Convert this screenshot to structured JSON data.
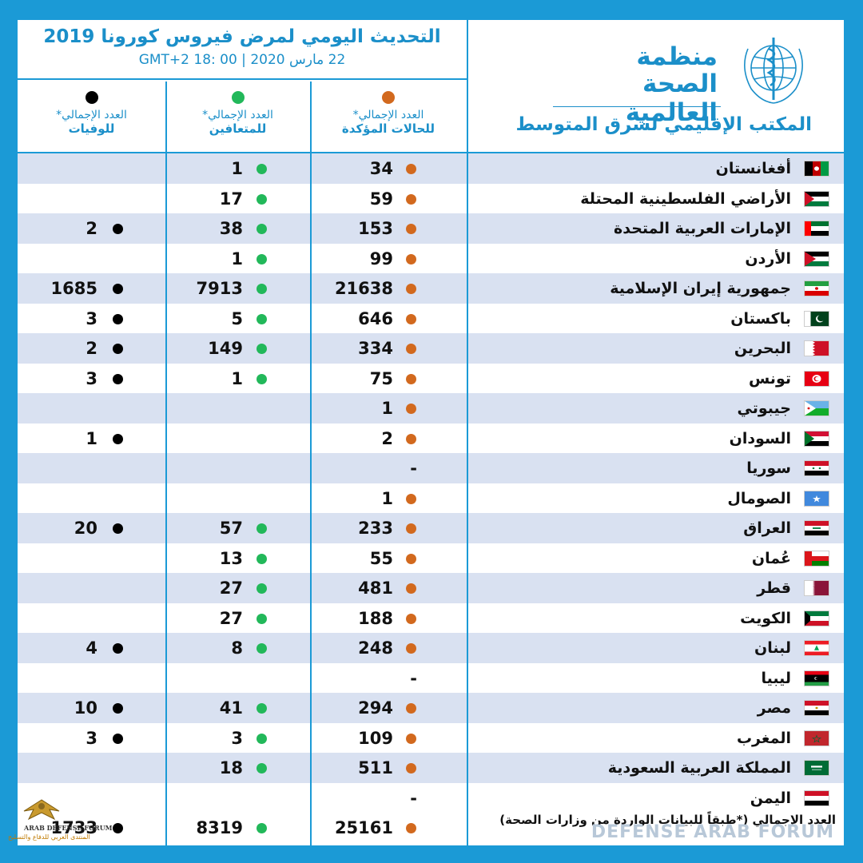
{
  "header": {
    "title": "التحديث اليومي لمرض فيروس كورونا 2019",
    "time": "22 مارس 2020 | GMT+2  18: 00"
  },
  "org": {
    "name_line1": "منظمة",
    "name_line2": "الصحة العالمية",
    "region": "المكتب الإقليمي لشرق المتوسط"
  },
  "columns": {
    "confirmed_l1": "العدد الإجمالي*",
    "confirmed_l2": "للحالات المؤكدة",
    "recovered_l1": "العدد الإجمالي*",
    "recovered_l2": "للمتعافين",
    "deaths_l1": "العدد الإجمالي*",
    "deaths_l2": "للوفيات"
  },
  "colors": {
    "confirmed": "#d2691e",
    "recovered": "#22b85a",
    "deaths": "#000000",
    "accent": "#1b9ad6",
    "row_alt": "#d9e1f1"
  },
  "countries": [
    {
      "name": "أفغانستان",
      "flag": "afghanistan",
      "confirmed": "34",
      "recovered": "1",
      "deaths": ""
    },
    {
      "name": "الأراضي الفلسطينية المحتلة",
      "flag": "palestine",
      "confirmed": "59",
      "recovered": "17",
      "deaths": ""
    },
    {
      "name": "الإمارات العربية المتحدة",
      "flag": "uae",
      "confirmed": "153",
      "recovered": "38",
      "deaths": "2"
    },
    {
      "name": "الأردن",
      "flag": "jordan",
      "confirmed": "99",
      "recovered": "1",
      "deaths": ""
    },
    {
      "name": "جمهورية إيران الإسلامية",
      "flag": "iran",
      "confirmed": "21638",
      "recovered": "7913",
      "deaths": "1685"
    },
    {
      "name": "باكستان",
      "flag": "pakistan",
      "confirmed": "646",
      "recovered": "5",
      "deaths": "3"
    },
    {
      "name": "البحرين",
      "flag": "bahrain",
      "confirmed": "334",
      "recovered": "149",
      "deaths": "2"
    },
    {
      "name": "تونس",
      "flag": "tunisia",
      "confirmed": "75",
      "recovered": "1",
      "deaths": "3"
    },
    {
      "name": "جيبوتي",
      "flag": "djibouti",
      "confirmed": "1",
      "recovered": "",
      "deaths": ""
    },
    {
      "name": "السودان",
      "flag": "sudan",
      "confirmed": "2",
      "recovered": "",
      "deaths": "1"
    },
    {
      "name": "سوريا",
      "flag": "syria",
      "confirmed": "-",
      "recovered": "",
      "deaths": ""
    },
    {
      "name": "الصومال",
      "flag": "somalia",
      "confirmed": "1",
      "recovered": "",
      "deaths": ""
    },
    {
      "name": "العراق",
      "flag": "iraq",
      "confirmed": "233",
      "recovered": "57",
      "deaths": "20"
    },
    {
      "name": "عُمان",
      "flag": "oman",
      "confirmed": "55",
      "recovered": "13",
      "deaths": ""
    },
    {
      "name": "قطر",
      "flag": "qatar",
      "confirmed": "481",
      "recovered": "27",
      "deaths": ""
    },
    {
      "name": "الكويت",
      "flag": "kuwait",
      "confirmed": "188",
      "recovered": "27",
      "deaths": ""
    },
    {
      "name": "لبنان",
      "flag": "lebanon",
      "confirmed": "248",
      "recovered": "8",
      "deaths": "4"
    },
    {
      "name": "ليبيا",
      "flag": "libya",
      "confirmed": "-",
      "recovered": "",
      "deaths": ""
    },
    {
      "name": "مصر",
      "flag": "egypt",
      "confirmed": "294",
      "recovered": "41",
      "deaths": "10"
    },
    {
      "name": "المغرب",
      "flag": "morocco",
      "confirmed": "109",
      "recovered": "3",
      "deaths": "3"
    },
    {
      "name": "المملكة العربية السعودية",
      "flag": "saudi",
      "confirmed": "511",
      "recovered": "18",
      "deaths": ""
    },
    {
      "name": "اليمن",
      "flag": "yemen",
      "confirmed": "-",
      "recovered": "",
      "deaths": ""
    }
  ],
  "total": {
    "label": "العدد الإجمالي (*طبقاً للبيانات الواردة من وزارات الصحة)",
    "confirmed": "25161",
    "recovered": "8319",
    "deaths": "1733"
  },
  "watermark": {
    "text": "DEFENSE ARAB FORUM",
    "logo_en": "ARAB DEFENSE FORUM",
    "logo_ar": "المنتدى العربي للدفاع والتسليح"
  }
}
